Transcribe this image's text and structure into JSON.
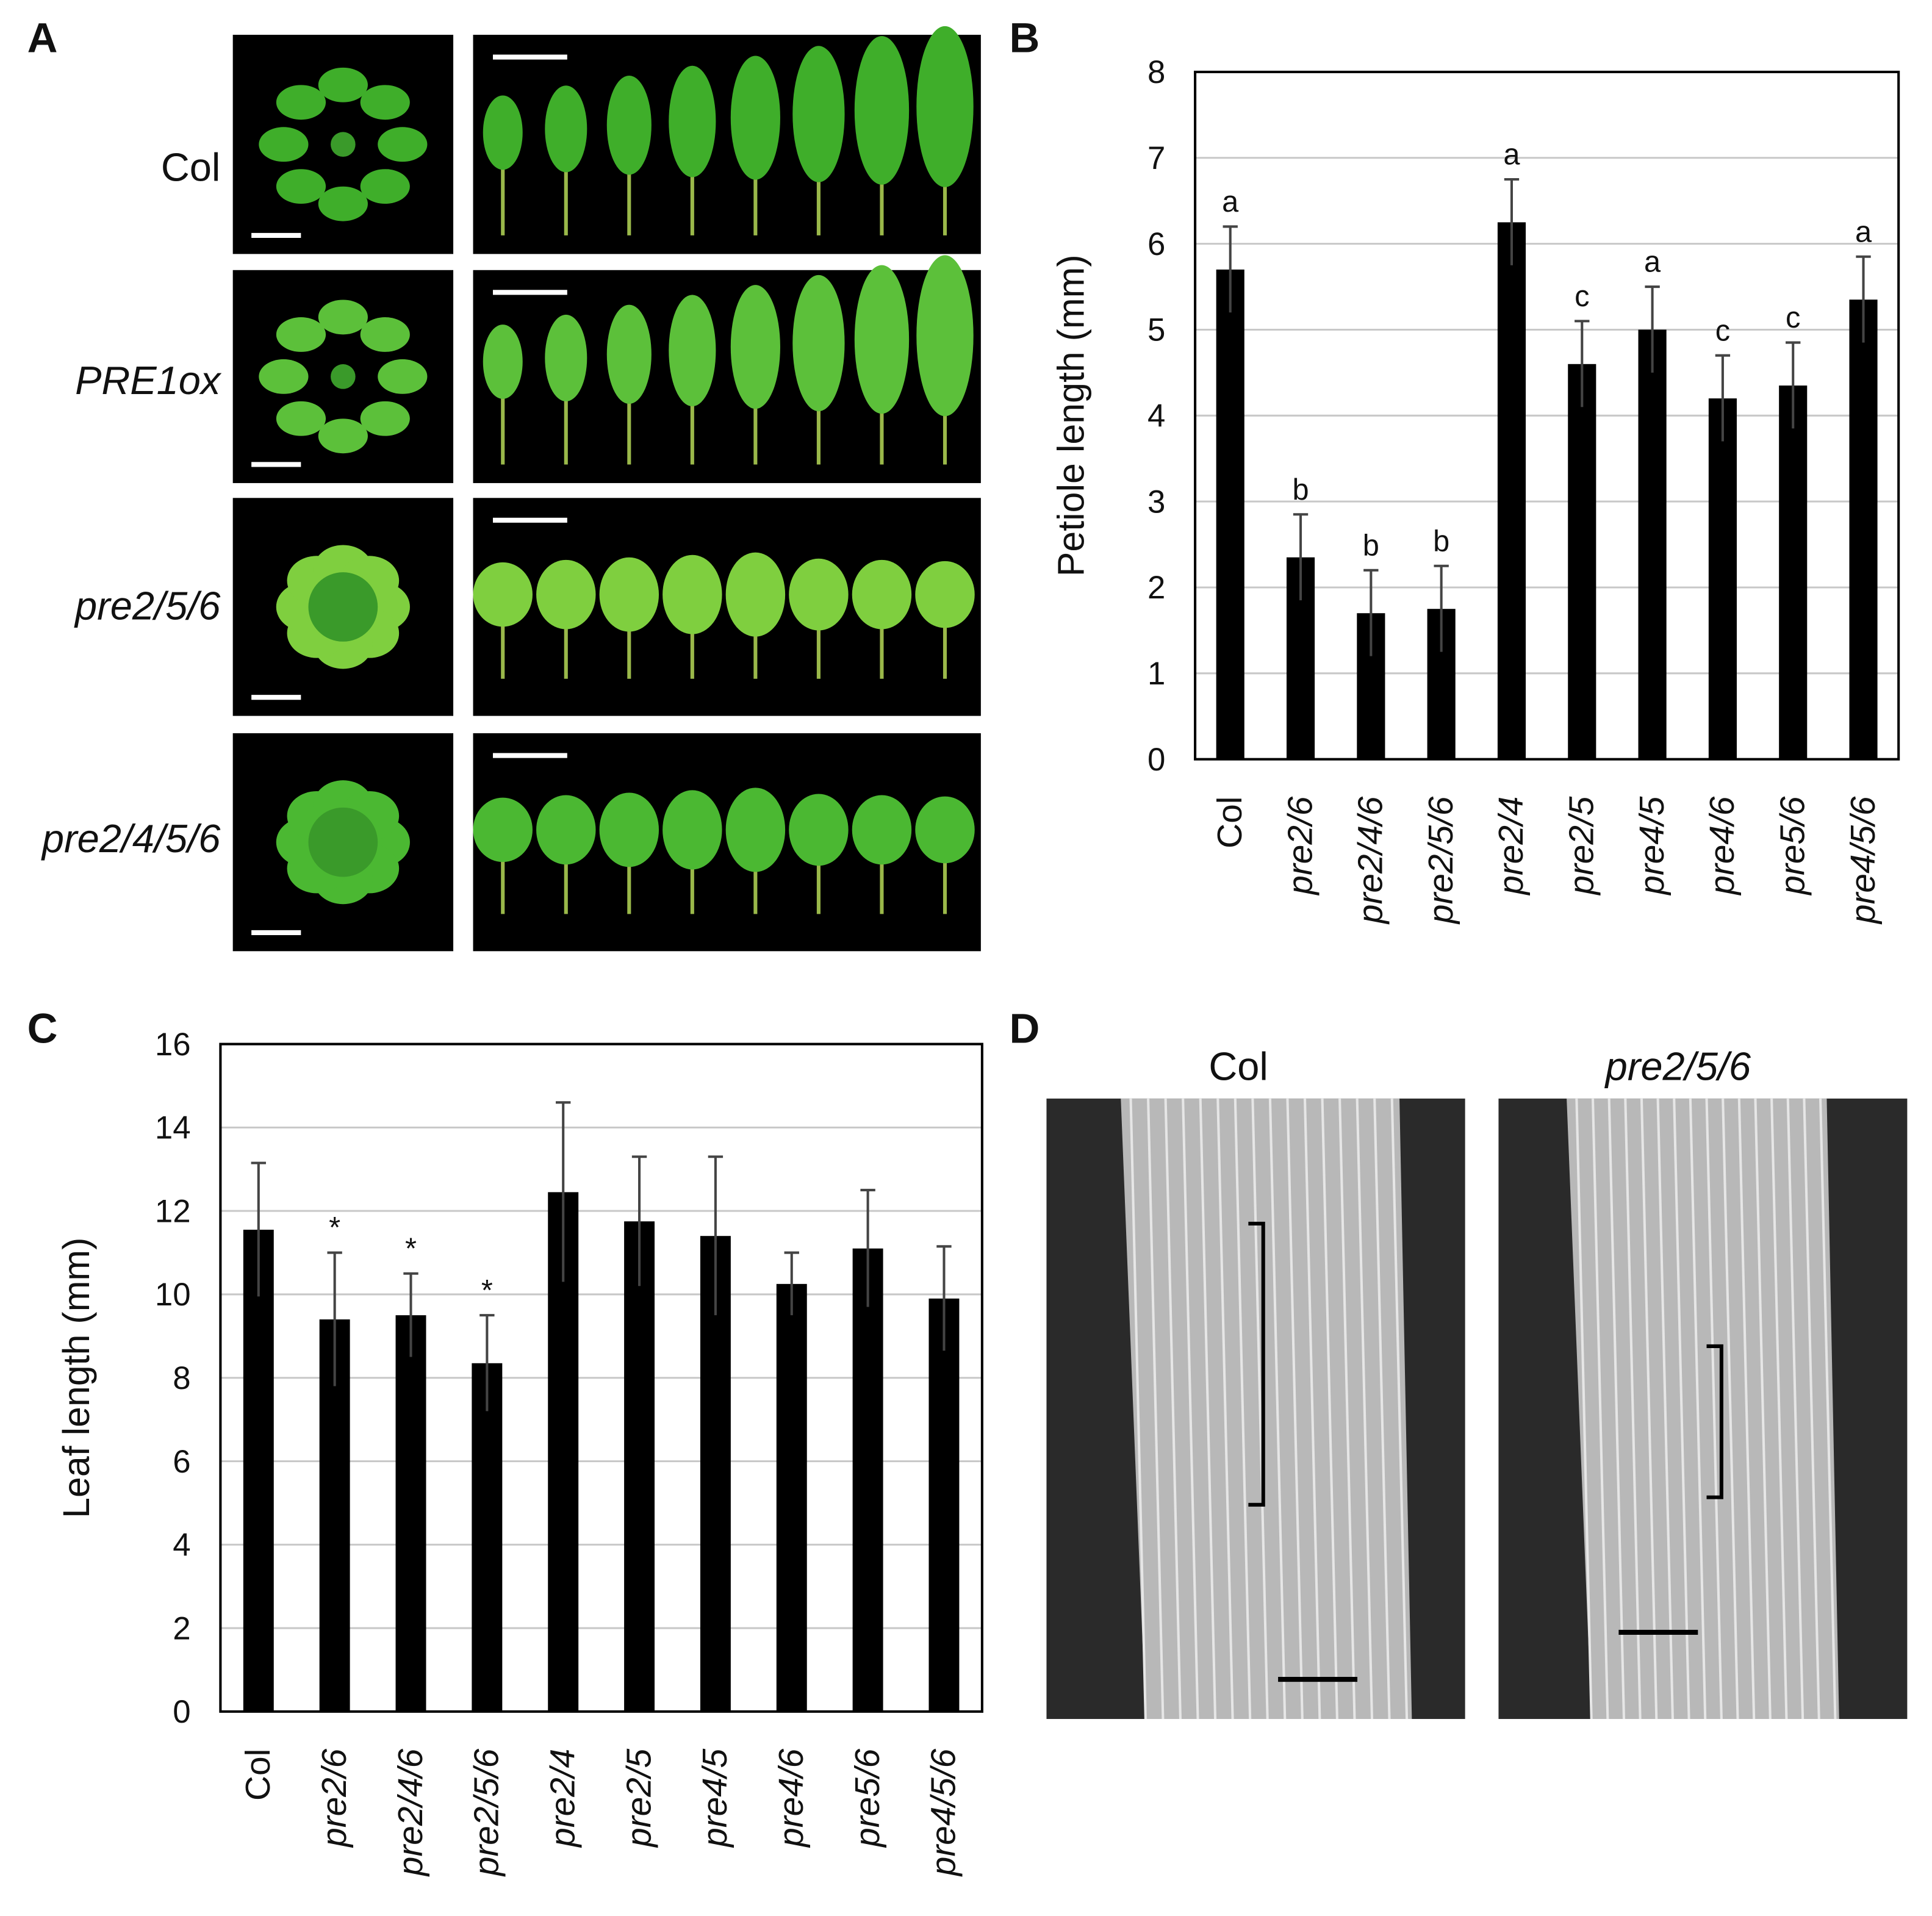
{
  "panels": {
    "a": {
      "letter": "A",
      "rows": [
        "Col",
        "PRE1ox",
        "pre2/5/6",
        "pre2/4/5/6"
      ]
    },
    "b": {
      "letter": "B"
    },
    "c": {
      "letter": "C"
    },
    "d": {
      "letter": "D",
      "titles": [
        "Col",
        "pre2/5/6"
      ]
    }
  },
  "chart_data": [
    {
      "type": "bar",
      "y_label": "Petiole length (mm)",
      "categories": [
        "Col",
        "pre2/6",
        "pre2/4/6",
        "pre2/5/6",
        "pre2/4",
        "pre2/5",
        "pre4/5",
        "pre4/6",
        "pre5/6",
        "pre4/5/6"
      ],
      "values": [
        5.7,
        2.35,
        1.7,
        1.75,
        6.25,
        4.6,
        5.0,
        4.2,
        4.35,
        5.35
      ],
      "errors": [
        0.5,
        0.5,
        0.5,
        0.5,
        0.5,
        0.5,
        0.5,
        0.5,
        0.5,
        0.5
      ],
      "annotations": [
        "a",
        "b",
        "b",
        "b",
        "a",
        "c",
        "a",
        "c",
        "c",
        "a"
      ],
      "color": "#000000",
      "ylim": [
        0,
        8
      ],
      "yticks": [
        0,
        1,
        2,
        3,
        4,
        5,
        6,
        7,
        8
      ],
      "grid": true
    },
    {
      "type": "bar",
      "y_label": "Leaf length (mm)",
      "categories": [
        "Col",
        "pre2/6",
        "pre2/4/6",
        "pre2/5/6",
        "pre2/4",
        "pre2/5",
        "pre4/5",
        "pre4/6",
        "pre5/6",
        "pre4/5/6"
      ],
      "values": [
        11.55,
        9.4,
        9.5,
        8.35,
        12.45,
        11.75,
        11.4,
        10.25,
        11.1,
        9.9
      ],
      "errors": [
        1.6,
        1.6,
        1.0,
        1.15,
        2.15,
        1.55,
        1.9,
        0.75,
        1.4,
        1.25
      ],
      "annotations": [
        null,
        "*",
        "*",
        "*",
        null,
        null,
        null,
        null,
        null,
        null
      ],
      "color": "#000000",
      "ylim": [
        0,
        16
      ],
      "yticks": [
        0,
        2,
        4,
        6,
        8,
        10,
        12,
        14,
        16
      ],
      "grid": true
    }
  ]
}
